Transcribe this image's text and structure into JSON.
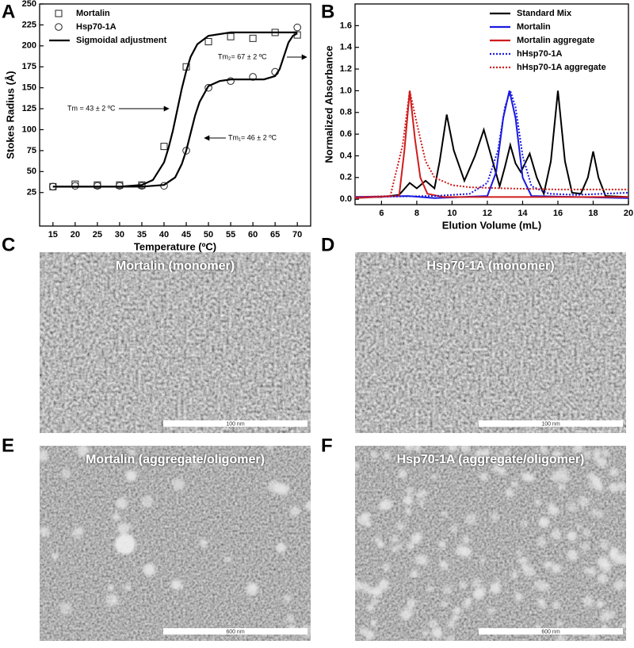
{
  "chart_data": [
    {
      "type": "scatter",
      "panel": "A",
      "x_label": "Temperature (ºC)",
      "y_label": "Stokes Radius (Å)",
      "xlim": [
        12,
        73
      ],
      "ylim": [
        -15,
        250
      ],
      "xticks": [
        15,
        20,
        25,
        30,
        35,
        40,
        45,
        50,
        55,
        60,
        65,
        70
      ],
      "yticks": [
        25,
        50,
        75,
        100,
        125,
        150,
        175,
        200,
        225,
        250
      ],
      "legend": "upper left",
      "x": [
        15,
        20,
        25,
        30,
        35,
        40,
        45,
        50,
        55,
        60,
        65,
        70
      ],
      "series": [
        {
          "name": "Mortalin",
          "marker": "square",
          "color": "#222222",
          "values": [
            32,
            35,
            34,
            34,
            34,
            80,
            175,
            205,
            211,
            209,
            216,
            213
          ]
        },
        {
          "name": "Hsp70-1A",
          "marker": "circle",
          "color": "#222222",
          "values": [
            32,
            33,
            33,
            33,
            33,
            33,
            75,
            150,
            158,
            163,
            169,
            222
          ]
        },
        {
          "name": "Sigmoidal adjustment",
          "color": "#000000",
          "curves": [
            {
              "x": [
                15,
                20,
                25,
                30,
                35,
                37.5,
                40,
                41,
                42,
                43,
                44,
                45,
                46,
                47.5,
                50,
                55,
                60,
                65,
                70
              ],
              "values": [
                32,
                32,
                32,
                32,
                34,
                40,
                61,
                78,
                99,
                124,
                149,
                170,
                187,
                202,
                212,
                216,
                216,
                216,
                216
              ]
            },
            {
              "x": [
                15,
                20,
                25,
                30,
                35,
                40,
                42.5,
                44,
                45,
                46,
                47,
                48,
                50,
                52.5,
                55,
                60,
                62.5,
                65,
                66,
                67,
                68,
                69,
                70
              ],
              "values": [
                32,
                32,
                32,
                32,
                32,
                34,
                43,
                59,
                75,
                96,
                117,
                133,
                152,
                158,
                160,
                160,
                160,
                164,
                172,
                188,
                204,
                212,
                215
              ]
            }
          ]
        }
      ],
      "annotations": [
        "Tm = 43 ± 2 ºC",
        "Tm₁= 46 ± 2 ºC",
        "Tm₂= 67 ± 2 ºC"
      ]
    },
    {
      "type": "line",
      "panel": "B",
      "x_label": "Elution Volume (mL)",
      "y_label": "Normalized Absorbance",
      "xlim": [
        4.5,
        20
      ],
      "ylim": [
        -0.05,
        1.8
      ],
      "xticks": [
        6,
        8,
        10,
        12,
        14,
        16,
        18,
        20
      ],
      "yticks": [
        {
          "value": 0,
          "label": "0.0"
        },
        0.2,
        0.4,
        0.6,
        0.8,
        {
          "value": 1,
          "label": "1.0"
        },
        1.2,
        1.4,
        1.6
      ],
      "legend": "upper right",
      "series": [
        {
          "name": "Standard Mix",
          "color": "#000000",
          "linestyle": "solid",
          "x": [
            4.5,
            6,
            7,
            7.6,
            8,
            8.5,
            9,
            9.3,
            9.7,
            10.1,
            10.7,
            11.3,
            11.8,
            12.3,
            12.7,
            13,
            13.3,
            13.6,
            13.9,
            14.4,
            14.8,
            15.2,
            15.6,
            16,
            16.4,
            16.8,
            17.3,
            17.7,
            18,
            18.3,
            18.7,
            20
          ],
          "values": [
            0.02,
            0.02,
            0.04,
            0.15,
            0.1,
            0.17,
            0.1,
            0.35,
            0.78,
            0.45,
            0.17,
            0.4,
            0.64,
            0.35,
            0.12,
            0.3,
            0.5,
            0.33,
            0.25,
            0.42,
            0.2,
            0.05,
            0.35,
            1.0,
            0.35,
            0.06,
            0.05,
            0.2,
            0.44,
            0.2,
            0.03,
            0.02
          ]
        },
        {
          "name": "Mortalin",
          "color": "#1a1adf",
          "linestyle": "solid",
          "x": [
            4.5,
            7.5,
            9,
            12,
            12.5,
            12.9,
            13.25,
            13.6,
            14,
            14.5,
            20
          ],
          "values": [
            0.02,
            0.03,
            0.01,
            0.03,
            0.25,
            0.75,
            1.0,
            0.75,
            0.2,
            0.03,
            0.01
          ]
        },
        {
          "name": "Mortalin aggregate",
          "color": "#d01c1c",
          "linestyle": "solid",
          "x": [
            4.5,
            7,
            7.3,
            7.6,
            7.9,
            8.2,
            8.6,
            9.5,
            20
          ],
          "values": [
            0.01,
            0.03,
            0.45,
            1.0,
            0.55,
            0.2,
            0.05,
            0.02,
            0.02
          ]
        },
        {
          "name": "hHsp70-1A",
          "color": "#1a1adf",
          "linestyle": "dotted",
          "x": [
            4.5,
            9,
            11,
            12,
            12.6,
            13,
            13.3,
            13.6,
            14,
            14.5,
            15.5,
            17,
            20
          ],
          "values": [
            0.02,
            0.03,
            0.05,
            0.15,
            0.45,
            0.85,
            1.0,
            0.85,
            0.4,
            0.12,
            0.05,
            0.04,
            0.06
          ]
        },
        {
          "name": "hHsp70-1A aggregate",
          "color": "#d01c1c",
          "linestyle": "dotted",
          "x": [
            4.5,
            6.5,
            7.2,
            7.6,
            8,
            8.5,
            9,
            10,
            11,
            13,
            16,
            20
          ],
          "values": [
            0.02,
            0.03,
            0.5,
            1.0,
            0.7,
            0.35,
            0.2,
            0.13,
            0.11,
            0.1,
            0.09,
            0.09
          ]
        }
      ]
    }
  ],
  "images": [
    {
      "panel": "C",
      "label": "Mortalin (monomer)",
      "scale_bar": "100 nm"
    },
    {
      "panel": "D",
      "label": "Hsp70-1A (monomer)",
      "scale_bar": "100 nm"
    },
    {
      "panel": "E",
      "label": "Mortalin (aggregate/oligomer)",
      "scale_bar": "600 nm"
    },
    {
      "panel": "F",
      "label": "Hsp70-1A (aggregate/oligomer)",
      "scale_bar": "600 nm"
    }
  ]
}
